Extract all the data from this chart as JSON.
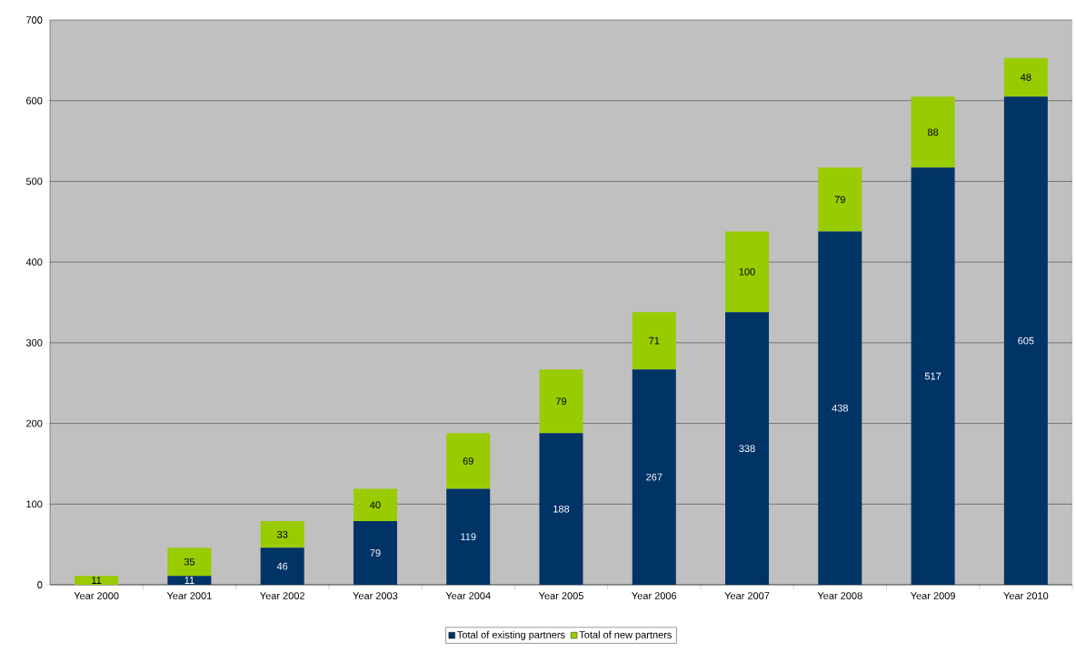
{
  "chart_data": {
    "type": "bar",
    "stacked": true,
    "categories": [
      "Year 2000",
      "Year 2001",
      "Year 2002",
      "Year 2003",
      "Year 2004",
      "Year 2005",
      "Year 2006",
      "Year 2007",
      "Year 2008",
      "Year 2009",
      "Year 2010"
    ],
    "series": [
      {
        "name": "Total of existing partners",
        "color": "#003366",
        "values": [
          0,
          11,
          46,
          79,
          119,
          188,
          267,
          338,
          438,
          517,
          605
        ],
        "value_labels": [
          null,
          "11",
          "46",
          "79",
          "119",
          "188",
          "267",
          "338",
          "438",
          "517",
          "605"
        ]
      },
      {
        "name": "Total of new partners",
        "color": "#99cc00",
        "values": [
          11,
          35,
          33,
          40,
          69,
          79,
          71,
          100,
          79,
          88,
          48
        ],
        "value_labels": [
          "11",
          "35",
          "33",
          "40",
          "69",
          "79",
          "71",
          "100",
          "79",
          "88",
          "48"
        ]
      }
    ],
    "ylim": [
      0,
      700
    ],
    "yticks": [
      0,
      100,
      200,
      300,
      400,
      500,
      600,
      700
    ],
    "grid": "y",
    "legend": "bottom"
  }
}
